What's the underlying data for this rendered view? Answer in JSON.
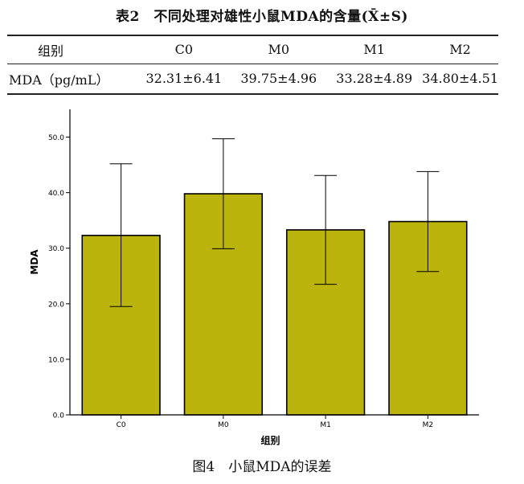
{
  "table": {
    "title": "表2　不同处理对雄性小鼠MDA的含量(X̄±S)",
    "headers": [
      "组别",
      "C0",
      "M0",
      "M1",
      "M2"
    ],
    "row": [
      "MDA（pg/mL）",
      "32.31±6.41",
      "39.75±4.96",
      "33.28±4.89",
      "34.80±4.51"
    ]
  },
  "caption": "图4　小鼠MDA的误差",
  "colors": {
    "bar": "#bab40c",
    "bar_edge": "#000000",
    "axis": "#000000"
  },
  "chart_data": {
    "type": "bar",
    "categories": [
      "C0",
      "M0",
      "M1",
      "M2"
    ],
    "series": [
      {
        "values": [
          32.3,
          39.8,
          33.3,
          34.8
        ],
        "error_low": [
          19.5,
          29.9,
          23.5,
          25.8
        ],
        "error_high": [
          45.2,
          49.7,
          43.1,
          43.8
        ]
      }
    ],
    "xlabel": "组别",
    "ylabel": "MDA",
    "ylim": [
      0,
      55
    ],
    "yticks": [
      0,
      10,
      20,
      30,
      40,
      50
    ],
    "ytick_labels": [
      "0.0",
      "10.0",
      "20.0",
      "30.0",
      "40.0",
      "50.0"
    ],
    "grid": false,
    "legend": "none"
  }
}
